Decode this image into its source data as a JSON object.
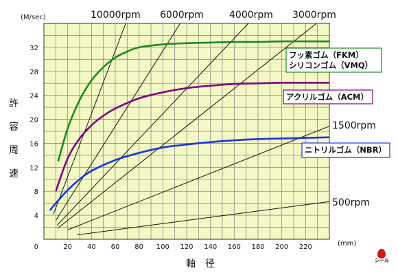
{
  "chart_data": {
    "type": "line",
    "title": "",
    "ylabel": "許容周速",
    "yunit": "(M/sec)",
    "xlabel": "軸　径",
    "xunit": "(mm)",
    "xlim": [
      0,
      240
    ],
    "ylim": [
      0,
      36
    ],
    "x_ticks": [
      "20",
      "40",
      "60",
      "80",
      "100",
      "120",
      "140",
      "160",
      "180",
      "200",
      "220"
    ],
    "y_ticks": [
      "4",
      "8",
      "12",
      "16",
      "20",
      "24",
      "28",
      "32"
    ],
    "origin_label": "0",
    "grid": true,
    "series": [
      {
        "name": "フッ素ゴム（FKM）シリコンゴム（VMQ）",
        "color": "#1a8a1a",
        "label_lines": [
          "フッ素ゴム（FKM）",
          "シリコンゴム（VMQ）"
        ],
        "x": [
          12,
          20,
          30,
          40,
          50,
          60,
          70,
          80,
          100,
          120,
          140,
          160,
          180,
          200,
          220,
          240
        ],
        "y": [
          13,
          18.5,
          23.2,
          26.5,
          28.7,
          30.3,
          31.3,
          32.0,
          32.5,
          32.7,
          32.8,
          32.9,
          32.9,
          33.0,
          33.0,
          33.0
        ]
      },
      {
        "name": "アクリルゴム（ACM）",
        "color": "#800080",
        "label_lines": [
          "アクリルゴム（ACM）"
        ],
        "x": [
          10,
          20,
          30,
          40,
          50,
          60,
          80,
          100,
          120,
          140,
          160,
          180,
          200,
          220,
          240
        ],
        "y": [
          8,
          13.5,
          16.8,
          19.0,
          20.6,
          21.8,
          23.5,
          24.5,
          25.2,
          25.6,
          25.9,
          26.0,
          26.1,
          26.1,
          26.1
        ]
      },
      {
        "name": "ニトリルゴム（NBR）",
        "color": "#1a33e6",
        "label_lines": [
          "ニトリルゴム（NBR）"
        ],
        "x": [
          5,
          10,
          20,
          30,
          40,
          60,
          80,
          100,
          120,
          140,
          160,
          180,
          200,
          220,
          240
        ],
        "y": [
          4.8,
          6.0,
          8.2,
          10.0,
          11.4,
          13.2,
          14.4,
          15.3,
          15.8,
          16.2,
          16.5,
          16.7,
          16.8,
          16.9,
          17.0
        ]
      }
    ],
    "rpm_lines": [
      {
        "label": "10000rpm",
        "rpm": 10000
      },
      {
        "label": "6000rpm",
        "rpm": 6000
      },
      {
        "label": "4000rpm",
        "rpm": 4000
      },
      {
        "label": "3000rpm",
        "rpm": 3000
      },
      {
        "label": "1500rpm",
        "rpm": 1500
      },
      {
        "label": "500rpm",
        "rpm": 500
      }
    ]
  },
  "logo_text": "シール"
}
